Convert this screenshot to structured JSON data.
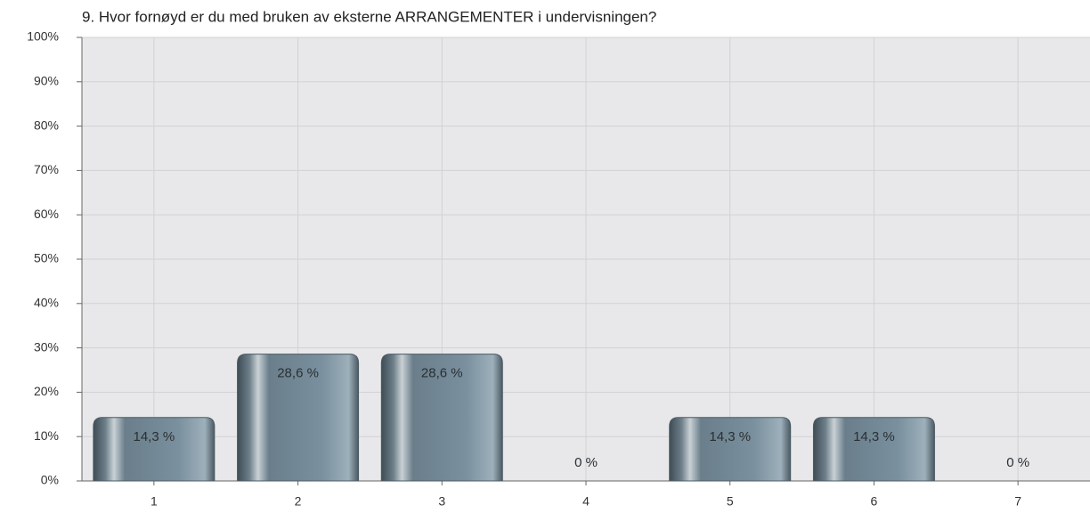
{
  "chart_data": {
    "type": "bar",
    "title": "9. Hvor fornøyd er du med bruken av eksterne ARRANGEMENTER i undervisningen?",
    "categories": [
      "1",
      "2",
      "3",
      "4",
      "5",
      "6",
      "7"
    ],
    "values": [
      14.3,
      28.6,
      28.6,
      0,
      14.3,
      14.3,
      0
    ],
    "value_labels": [
      "14,3 %",
      "28,6 %",
      "28,6 %",
      "0 %",
      "14,3 %",
      "14,3 %",
      "0 %"
    ],
    "color": "#7a909e",
    "ylim": [
      0,
      100
    ],
    "yticks": [
      {
        "value": 0,
        "label": "0%"
      },
      {
        "value": 10,
        "label": "10%"
      },
      {
        "value": 20,
        "label": "20%"
      },
      {
        "value": 30,
        "label": "30%"
      },
      {
        "value": 40,
        "label": "40%"
      },
      {
        "value": 50,
        "label": "50%"
      },
      {
        "value": 60,
        "label": "60%"
      },
      {
        "value": 70,
        "label": "70%"
      },
      {
        "value": 80,
        "label": "80%"
      },
      {
        "value": 90,
        "label": "90%"
      },
      {
        "value": 100,
        "label": "100%"
      }
    ],
    "grid": true
  }
}
